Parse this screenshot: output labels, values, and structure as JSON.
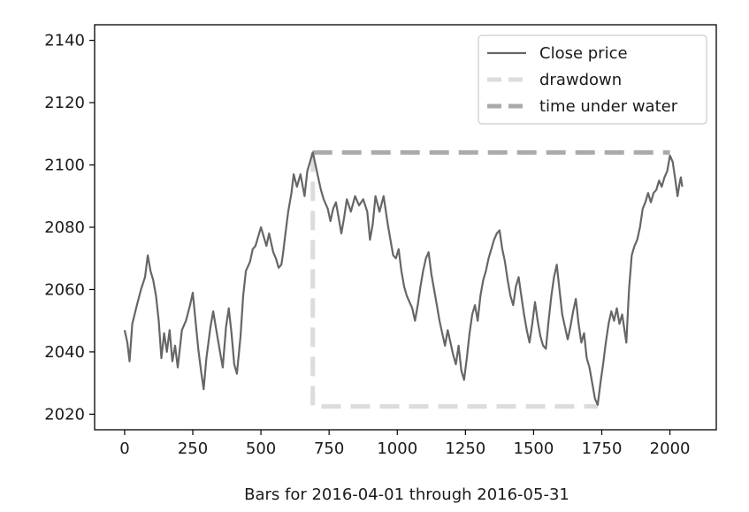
{
  "chart_data": {
    "type": "line",
    "title": "",
    "xlabel": "Bars for 2016-04-01 through 2016-05-31",
    "ylabel": "",
    "xlim": [
      -110,
      2170
    ],
    "ylim": [
      2015,
      2145
    ],
    "x_ticks": [
      0,
      250,
      500,
      750,
      1000,
      1250,
      1500,
      1750,
      2000
    ],
    "y_ticks": [
      2020,
      2040,
      2060,
      2080,
      2100,
      2120,
      2140
    ],
    "grid": false,
    "legend_position": "upper right",
    "series": [
      {
        "name": "Close price",
        "style": "solid",
        "color": "#666666",
        "points": [
          [
            0,
            2047
          ],
          [
            10,
            2043
          ],
          [
            18,
            2037
          ],
          [
            28,
            2049
          ],
          [
            45,
            2055
          ],
          [
            60,
            2060
          ],
          [
            75,
            2064
          ],
          [
            85,
            2071
          ],
          [
            95,
            2066
          ],
          [
            105,
            2063
          ],
          [
            115,
            2058
          ],
          [
            125,
            2050
          ],
          [
            135,
            2038
          ],
          [
            145,
            2046
          ],
          [
            155,
            2040
          ],
          [
            165,
            2047
          ],
          [
            175,
            2037
          ],
          [
            185,
            2042
          ],
          [
            195,
            2035
          ],
          [
            210,
            2047
          ],
          [
            225,
            2050
          ],
          [
            240,
            2055
          ],
          [
            250,
            2059
          ],
          [
            260,
            2050
          ],
          [
            270,
            2041
          ],
          [
            280,
            2034
          ],
          [
            290,
            2028
          ],
          [
            300,
            2038
          ],
          [
            315,
            2048
          ],
          [
            325,
            2053
          ],
          [
            340,
            2045
          ],
          [
            350,
            2040
          ],
          [
            360,
            2035
          ],
          [
            372,
            2048
          ],
          [
            382,
            2054
          ],
          [
            392,
            2046
          ],
          [
            402,
            2036
          ],
          [
            412,
            2033
          ],
          [
            425,
            2045
          ],
          [
            435,
            2058
          ],
          [
            445,
            2066
          ],
          [
            460,
            2069
          ],
          [
            470,
            2073
          ],
          [
            480,
            2074
          ],
          [
            490,
            2077
          ],
          [
            500,
            2080
          ],
          [
            510,
            2077
          ],
          [
            520,
            2074
          ],
          [
            530,
            2078
          ],
          [
            545,
            2072
          ],
          [
            555,
            2070
          ],
          [
            565,
            2067
          ],
          [
            575,
            2068
          ],
          [
            580,
            2071
          ],
          [
            590,
            2078
          ],
          [
            600,
            2085
          ],
          [
            612,
            2091
          ],
          [
            620,
            2097
          ],
          [
            632,
            2093
          ],
          [
            645,
            2097
          ],
          [
            660,
            2090
          ],
          [
            670,
            2098
          ],
          [
            680,
            2101
          ],
          [
            690,
            2104
          ],
          [
            700,
            2100
          ],
          [
            710,
            2096
          ],
          [
            720,
            2092
          ],
          [
            730,
            2089
          ],
          [
            745,
            2086
          ],
          [
            755,
            2082
          ],
          [
            765,
            2086
          ],
          [
            775,
            2088
          ],
          [
            785,
            2083
          ],
          [
            795,
            2078
          ],
          [
            805,
            2083
          ],
          [
            815,
            2089
          ],
          [
            830,
            2085
          ],
          [
            845,
            2090
          ],
          [
            860,
            2087
          ],
          [
            875,
            2089
          ],
          [
            890,
            2085
          ],
          [
            900,
            2076
          ],
          [
            910,
            2081
          ],
          [
            920,
            2090
          ],
          [
            935,
            2085
          ],
          [
            950,
            2090
          ],
          [
            965,
            2081
          ],
          [
            975,
            2076
          ],
          [
            985,
            2071
          ],
          [
            995,
            2070
          ],
          [
            1005,
            2073
          ],
          [
            1015,
            2066
          ],
          [
            1025,
            2061
          ],
          [
            1035,
            2058
          ],
          [
            1045,
            2056
          ],
          [
            1055,
            2054
          ],
          [
            1065,
            2050
          ],
          [
            1075,
            2055
          ],
          [
            1085,
            2061
          ],
          [
            1095,
            2066
          ],
          [
            1105,
            2070
          ],
          [
            1115,
            2072
          ],
          [
            1125,
            2065
          ],
          [
            1135,
            2060
          ],
          [
            1145,
            2055
          ],
          [
            1155,
            2050
          ],
          [
            1165,
            2046
          ],
          [
            1175,
            2042
          ],
          [
            1185,
            2047
          ],
          [
            1195,
            2043
          ],
          [
            1205,
            2039
          ],
          [
            1215,
            2036
          ],
          [
            1225,
            2042
          ],
          [
            1235,
            2034
          ],
          [
            1245,
            2031
          ],
          [
            1255,
            2038
          ],
          [
            1265,
            2046
          ],
          [
            1275,
            2052
          ],
          [
            1285,
            2055
          ],
          [
            1295,
            2050
          ],
          [
            1305,
            2058
          ],
          [
            1315,
            2063
          ],
          [
            1325,
            2066
          ],
          [
            1335,
            2070
          ],
          [
            1345,
            2073
          ],
          [
            1355,
            2076
          ],
          [
            1365,
            2078
          ],
          [
            1375,
            2079
          ],
          [
            1385,
            2073
          ],
          [
            1395,
            2069
          ],
          [
            1405,
            2063
          ],
          [
            1415,
            2058
          ],
          [
            1425,
            2055
          ],
          [
            1435,
            2061
          ],
          [
            1445,
            2064
          ],
          [
            1455,
            2058
          ],
          [
            1465,
            2052
          ],
          [
            1475,
            2047
          ],
          [
            1485,
            2043
          ],
          [
            1495,
            2049
          ],
          [
            1505,
            2056
          ],
          [
            1515,
            2050
          ],
          [
            1525,
            2045
          ],
          [
            1535,
            2042
          ],
          [
            1545,
            2041
          ],
          [
            1555,
            2050
          ],
          [
            1565,
            2058
          ],
          [
            1575,
            2064
          ],
          [
            1585,
            2068
          ],
          [
            1595,
            2060
          ],
          [
            1605,
            2052
          ],
          [
            1615,
            2048
          ],
          [
            1625,
            2044
          ],
          [
            1635,
            2048
          ],
          [
            1645,
            2053
          ],
          [
            1655,
            2057
          ],
          [
            1665,
            2049
          ],
          [
            1675,
            2043
          ],
          [
            1685,
            2046
          ],
          [
            1695,
            2038
          ],
          [
            1705,
            2035
          ],
          [
            1715,
            2030
          ],
          [
            1725,
            2025
          ],
          [
            1735,
            2023
          ],
          [
            1745,
            2030
          ],
          [
            1755,
            2036
          ],
          [
            1765,
            2043
          ],
          [
            1775,
            2049
          ],
          [
            1785,
            2053
          ],
          [
            1795,
            2050
          ],
          [
            1805,
            2054
          ],
          [
            1815,
            2049
          ],
          [
            1825,
            2052
          ],
          [
            1835,
            2046
          ],
          [
            1840,
            2043
          ],
          [
            1850,
            2060
          ],
          [
            1860,
            2071
          ],
          [
            1870,
            2074
          ],
          [
            1880,
            2076
          ],
          [
            1890,
            2080
          ],
          [
            1900,
            2086
          ],
          [
            1910,
            2088
          ],
          [
            1920,
            2091
          ],
          [
            1930,
            2088
          ],
          [
            1940,
            2091
          ],
          [
            1950,
            2092
          ],
          [
            1960,
            2095
          ],
          [
            1970,
            2093
          ],
          [
            1980,
            2096
          ],
          [
            1990,
            2098
          ],
          [
            2000,
            2103
          ],
          [
            2010,
            2101
          ],
          [
            2020,
            2095
          ],
          [
            2028,
            2090
          ],
          [
            2035,
            2094
          ],
          [
            2040,
            2096
          ],
          [
            2045,
            2093
          ]
        ]
      },
      {
        "name": "drawdown",
        "style": "dashed",
        "color": "#dcdcdc",
        "points": [
          [
            690,
            2104
          ],
          [
            690,
            2022.5
          ],
          [
            1735,
            2022.5
          ]
        ]
      },
      {
        "name": "time under water",
        "style": "dashed",
        "color": "#aaaaaa",
        "points": [
          [
            690,
            2104
          ],
          [
            2000,
            2104
          ]
        ]
      }
    ]
  }
}
